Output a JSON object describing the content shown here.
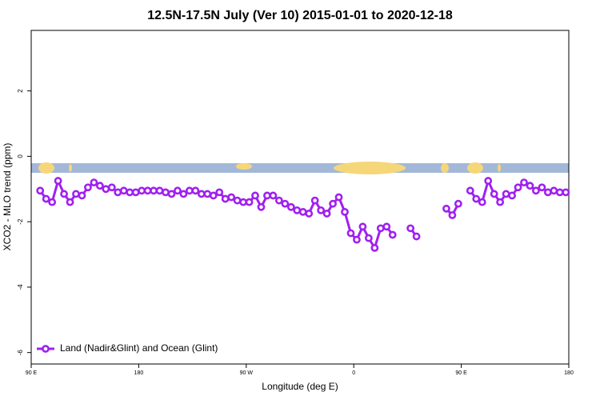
{
  "chart_data": {
    "type": "line",
    "title": "12.5N-17.5N July (Ver 10)   2015-01-01 to 2020-12-18",
    "x_label": "Longitude (deg E)",
    "y_label": "XCO2 - MLO trend (ppm)",
    "xlim": [
      90,
      540
    ],
    "xticks": [
      {
        "value": 90,
        "label": "90 E"
      },
      180,
      {
        "value": 270,
        "label": "90 W"
      },
      {
        "value": 360,
        "label": "0"
      },
      {
        "value": 450,
        "label": "90 E"
      },
      {
        "value": 540,
        "label": "180"
      }
    ],
    "ylim": [
      -6.35,
      3.85
    ],
    "yticks": [
      -6,
      -4,
      -2,
      0,
      2
    ],
    "grid": false,
    "legend": "bottom-left",
    "x": [
      97.5,
      102.5,
      107.5,
      112.5,
      117.5,
      122.5,
      127.5,
      132.5,
      137.5,
      142.5,
      147.5,
      152.5,
      157.5,
      162.5,
      167.5,
      172.5,
      177.5,
      182.5,
      187.5,
      192.5,
      197.5,
      202.5,
      207.5,
      212.5,
      217.5,
      222.5,
      227.5,
      232.5,
      237.5,
      242.5,
      247.5,
      252.5,
      257.5,
      262.5,
      267.5,
      272.5,
      277.5,
      282.5,
      287.5,
      292.5,
      297.5,
      302.5,
      307.5,
      312.5,
      317.5,
      322.5,
      327.5,
      332.5,
      337.5,
      342.5,
      347.5,
      352.5,
      357.5,
      362.5,
      367.5,
      372.5,
      377.5,
      382.5,
      387.5,
      392.5,
      397.5,
      402.5,
      407.5,
      412.5,
      417.5,
      422.5,
      427.5,
      432.5,
      437.5,
      442.5,
      447.5,
      452.5,
      457.5,
      462.5,
      467.5,
      472.5,
      477.5,
      482.5,
      487.5,
      492.5,
      497.5,
      502.5,
      507.5,
      512.5,
      517.5,
      522.5,
      527.5,
      532.5,
      537.5
    ],
    "series": [
      {
        "name": "Land (Nadir&Glint) and Ocean (Glint)",
        "color": "#a020f0",
        "values": [
          -1.05,
          -1.3,
          -1.4,
          -0.75,
          -1.15,
          -1.4,
          -1.15,
          -1.2,
          -0.95,
          -0.8,
          -0.9,
          -1.0,
          -0.95,
          -1.1,
          -1.05,
          -1.1,
          -1.1,
          -1.05,
          -1.05,
          -1.05,
          -1.05,
          -1.1,
          -1.15,
          -1.05,
          -1.15,
          -1.05,
          -1.05,
          -1.15,
          -1.15,
          -1.2,
          -1.1,
          -1.3,
          -1.25,
          -1.35,
          -1.4,
          -1.4,
          -1.2,
          -1.55,
          -1.2,
          -1.2,
          -1.35,
          -1.45,
          -1.55,
          -1.65,
          -1.7,
          -1.75,
          -1.35,
          -1.65,
          -1.75,
          -1.45,
          -1.25,
          -1.7,
          -2.35,
          -2.55,
          -2.15,
          -2.5,
          -2.8,
          -2.2,
          -2.15,
          -2.4,
          null,
          null,
          -2.2,
          -2.45,
          null,
          null,
          null,
          null,
          -1.6,
          -1.8,
          -1.45,
          null,
          -1.05,
          -1.3,
          -1.4,
          -0.75,
          -1.15,
          -1.4,
          -1.15,
          -1.2,
          -0.95,
          -0.8,
          -0.9,
          -1.05,
          -0.95,
          -1.1,
          -1.05,
          -1.1,
          -1.1
        ]
      }
    ]
  }
}
